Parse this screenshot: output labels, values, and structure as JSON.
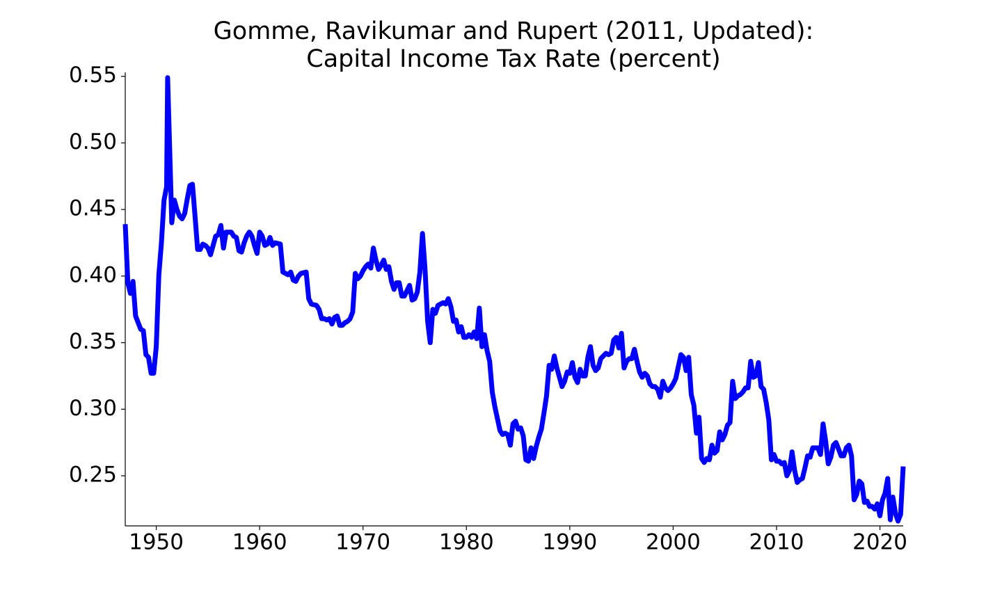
{
  "chart_data": {
    "type": "line",
    "title": "Gomme, Ravikumar and Rupert (2011, Updated):",
    "subtitle": "Capital Income Tax Rate (percent)",
    "x": [
      1947.0,
      1947.25,
      1947.5,
      1947.75,
      1948.0,
      1948.5,
      1948.75,
      1949.0,
      1949.25,
      1949.5,
      1949.75,
      1950.0,
      1950.25,
      1950.5,
      1950.75,
      1951.0,
      1951.1,
      1951.3,
      1951.5,
      1951.75,
      1952.0,
      1952.25,
      1952.5,
      1952.75,
      1953.0,
      1953.25,
      1953.5,
      1953.75,
      1954.0,
      1954.25,
      1954.5,
      1954.75,
      1955.0,
      1955.25,
      1955.5,
      1955.75,
      1956.0,
      1956.25,
      1956.5,
      1956.75,
      1957.0,
      1957.25,
      1957.5,
      1957.75,
      1958.0,
      1958.25,
      1958.5,
      1958.75,
      1959.0,
      1959.25,
      1959.5,
      1959.75,
      1960.0,
      1960.25,
      1960.5,
      1960.75,
      1961.0,
      1961.25,
      1961.5,
      1962.0,
      1962.25,
      1962.5,
      1962.75,
      1963.0,
      1963.25,
      1963.5,
      1963.75,
      1964.0,
      1964.5,
      1964.75,
      1965.0,
      1965.5,
      1965.75,
      1966.0,
      1966.25,
      1966.5,
      1966.75,
      1967.0,
      1967.25,
      1967.5,
      1967.75,
      1968.0,
      1968.25,
      1968.5,
      1968.75,
      1969.0,
      1969.25,
      1969.5,
      1969.75,
      1970.0,
      1970.25,
      1970.5,
      1970.75,
      1971.0,
      1971.25,
      1971.5,
      1971.75,
      1972.0,
      1972.25,
      1972.5,
      1972.75,
      1973.0,
      1973.25,
      1973.5,
      1973.75,
      1974.0,
      1974.25,
      1974.5,
      1974.75,
      1975.0,
      1975.25,
      1975.5,
      1975.75,
      1976.0,
      1976.25,
      1976.5,
      1976.75,
      1977.0,
      1977.25,
      1977.5,
      1977.75,
      1978.0,
      1978.25,
      1978.5,
      1978.75,
      1979.0,
      1979.25,
      1979.5,
      1979.75,
      1980.0,
      1980.25,
      1980.5,
      1980.75,
      1981.0,
      1981.25,
      1981.5,
      1981.75,
      1982.0,
      1982.25,
      1982.5,
      1982.75,
      1983.0,
      1983.25,
      1983.5,
      1983.75,
      1984.0,
      1984.25,
      1984.5,
      1984.75,
      1985.0,
      1985.25,
      1985.5,
      1985.75,
      1986.0,
      1986.25,
      1986.5,
      1986.75,
      1987.0,
      1987.25,
      1987.5,
      1987.75,
      1988.0,
      1988.25,
      1988.5,
      1988.75,
      1989.0,
      1989.25,
      1989.5,
      1989.75,
      1990.0,
      1990.25,
      1990.5,
      1990.75,
      1991.0,
      1991.25,
      1991.5,
      1991.75,
      1992.0,
      1992.25,
      1992.5,
      1992.75,
      1993.0,
      1993.25,
      1993.5,
      1993.75,
      1994.0,
      1994.25,
      1994.5,
      1994.75,
      1995.0,
      1995.25,
      1995.5,
      1995.75,
      1996.0,
      1996.25,
      1996.5,
      1996.75,
      1997.0,
      1997.25,
      1997.5,
      1997.75,
      1998.0,
      1998.25,
      1998.5,
      1998.75,
      1999.0,
      1999.25,
      1999.5,
      1999.75,
      2000.0,
      2000.25,
      2000.5,
      2000.75,
      2001.0,
      2001.25,
      2001.5,
      2001.75,
      2002.0,
      2002.25,
      2002.5,
      2002.75,
      2003.0,
      2003.25,
      2003.5,
      2003.75,
      2004.0,
      2004.25,
      2004.5,
      2004.75,
      2005.0,
      2005.25,
      2005.5,
      2005.75,
      2006.0,
      2006.25,
      2006.5,
      2006.75,
      2007.0,
      2007.25,
      2007.5,
      2007.75,
      2008.0,
      2008.25,
      2008.5,
      2008.75,
      2009.0,
      2009.25,
      2009.5,
      2009.75,
      2010.0,
      2010.25,
      2010.5,
      2010.75,
      2011.0,
      2011.25,
      2011.5,
      2011.75,
      2012.0,
      2012.25,
      2012.5,
      2012.75,
      2013.0,
      2013.25,
      2013.5,
      2013.75,
      2014.0,
      2014.25,
      2014.5,
      2014.75,
      2015.0,
      2015.25,
      2015.5,
      2015.75,
      2016.0,
      2016.25,
      2016.5,
      2016.75,
      2017.0,
      2017.25,
      2017.5,
      2017.75,
      2018.0,
      2018.25,
      2018.5,
      2018.75,
      2019.0,
      2019.25,
      2019.5,
      2019.75,
      2020.0,
      2020.25,
      2020.5,
      2020.75,
      2021.0,
      2021.25,
      2021.5,
      2021.75,
      2022.0,
      2022.25
    ],
    "series": [
      {
        "color": "#0000ff",
        "values": [
          0.439,
          0.395,
          0.387,
          0.396,
          0.37,
          0.36,
          0.359,
          0.341,
          0.339,
          0.327,
          0.327,
          0.347,
          0.401,
          0.425,
          0.457,
          0.467,
          0.549,
          0.495,
          0.44,
          0.457,
          0.45,
          0.445,
          0.443,
          0.447,
          0.458,
          0.468,
          0.469,
          0.445,
          0.42,
          0.42,
          0.424,
          0.423,
          0.421,
          0.416,
          0.423,
          0.43,
          0.431,
          0.438,
          0.421,
          0.433,
          0.433,
          0.433,
          0.43,
          0.429,
          0.419,
          0.418,
          0.425,
          0.43,
          0.433,
          0.43,
          0.423,
          0.417,
          0.433,
          0.43,
          0.423,
          0.424,
          0.429,
          0.423,
          0.425,
          0.424,
          0.403,
          0.402,
          0.401,
          0.403,
          0.397,
          0.396,
          0.4,
          0.402,
          0.403,
          0.383,
          0.379,
          0.378,
          0.375,
          0.368,
          0.368,
          0.367,
          0.368,
          0.364,
          0.369,
          0.37,
          0.363,
          0.363,
          0.365,
          0.366,
          0.368,
          0.373,
          0.402,
          0.398,
          0.4,
          0.404,
          0.407,
          0.409,
          0.406,
          0.421,
          0.412,
          0.405,
          0.408,
          0.412,
          0.405,
          0.407,
          0.396,
          0.39,
          0.395,
          0.395,
          0.385,
          0.385,
          0.389,
          0.393,
          0.382,
          0.383,
          0.388,
          0.403,
          0.432,
          0.405,
          0.366,
          0.35,
          0.375,
          0.372,
          0.378,
          0.379,
          0.38,
          0.379,
          0.383,
          0.377,
          0.366,
          0.367,
          0.358,
          0.362,
          0.354,
          0.354,
          0.356,
          0.354,
          0.358,
          0.353,
          0.376,
          0.347,
          0.356,
          0.344,
          0.336,
          0.313,
          0.302,
          0.293,
          0.284,
          0.281,
          0.282,
          0.281,
          0.273,
          0.289,
          0.291,
          0.285,
          0.286,
          0.28,
          0.262,
          0.261,
          0.271,
          0.263,
          0.272,
          0.279,
          0.285,
          0.297,
          0.31,
          0.333,
          0.33,
          0.34,
          0.331,
          0.324,
          0.317,
          0.321,
          0.328,
          0.327,
          0.335,
          0.324,
          0.32,
          0.33,
          0.325,
          0.325,
          0.339,
          0.347,
          0.333,
          0.329,
          0.331,
          0.338,
          0.34,
          0.342,
          0.341,
          0.342,
          0.352,
          0.354,
          0.346,
          0.357,
          0.331,
          0.336,
          0.338,
          0.338,
          0.345,
          0.336,
          0.328,
          0.324,
          0.327,
          0.325,
          0.319,
          0.317,
          0.317,
          0.315,
          0.309,
          0.321,
          0.316,
          0.314,
          0.316,
          0.319,
          0.323,
          0.332,
          0.341,
          0.339,
          0.329,
          0.339,
          0.311,
          0.303,
          0.282,
          0.294,
          0.263,
          0.26,
          0.263,
          0.262,
          0.273,
          0.267,
          0.269,
          0.283,
          0.277,
          0.281,
          0.288,
          0.29,
          0.321,
          0.308,
          0.31,
          0.311,
          0.313,
          0.316,
          0.316,
          0.336,
          0.324,
          0.325,
          0.335,
          0.317,
          0.315,
          0.305,
          0.292,
          0.262,
          0.266,
          0.261,
          0.261,
          0.259,
          0.26,
          0.25,
          0.254,
          0.268,
          0.254,
          0.245,
          0.247,
          0.248,
          0.256,
          0.265,
          0.264,
          0.271,
          0.271,
          0.271,
          0.266,
          0.289,
          0.276,
          0.259,
          0.264,
          0.273,
          0.275,
          0.27,
          0.265,
          0.265,
          0.271,
          0.273,
          0.265,
          0.232,
          0.236,
          0.246,
          0.244,
          0.23,
          0.231,
          0.227,
          0.227,
          0.225,
          0.229,
          0.22,
          0.232,
          0.237,
          0.248,
          0.217,
          0.234,
          0.222,
          0.216,
          0.221,
          0.257
        ]
      }
    ],
    "xlim": [
      1947,
      2022.25
    ],
    "xticks": [
      1950,
      1960,
      1970,
      1980,
      1990,
      2000,
      2010,
      2020
    ],
    "ylim": [
      0.2124,
      0.553
    ],
    "yticks": [
      0.25,
      {
        "value": 0.3,
        "label": "0.30"
      },
      0.35,
      {
        "value": 0.4,
        "label": "0.40"
      },
      0.45,
      {
        "value": 0.5,
        "label": "0.50"
      },
      0.55
    ],
    "grid": false
  }
}
